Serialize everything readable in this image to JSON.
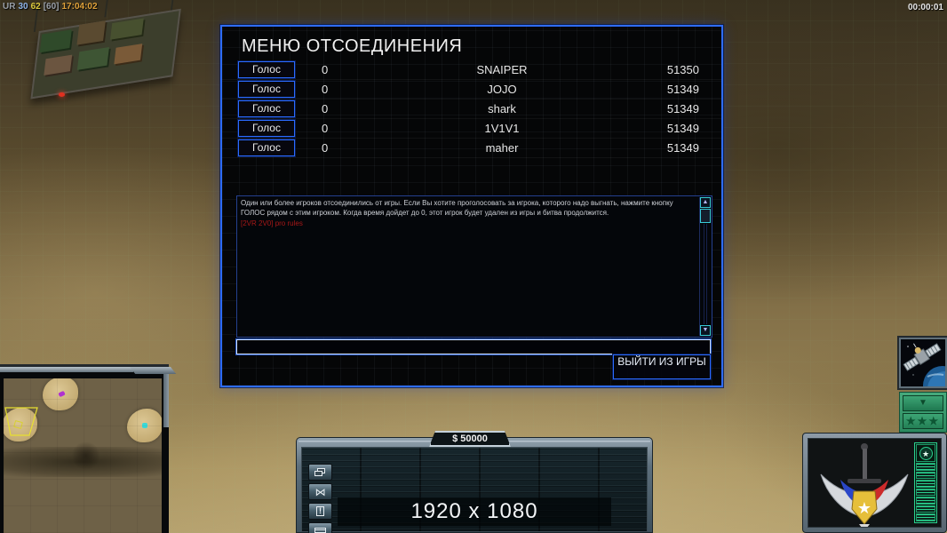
{
  "hud": {
    "top_left": {
      "prefix": "UR",
      "fps": "30",
      "latency": "62",
      "bracket": "[60]",
      "clock": "17:04:02"
    },
    "match_timer": "00:00:01",
    "money": "$ 50000",
    "resolution_overlay": "1920 x 1080"
  },
  "dialog": {
    "title": "МЕНЮ ОТСОЕДИНЕНИЯ",
    "vote_button_label": "Голос",
    "players": [
      {
        "votes": "0",
        "name": "SNAIPER",
        "ping": "51350"
      },
      {
        "votes": "0",
        "name": "JOJO",
        "ping": "51349"
      },
      {
        "votes": "0",
        "name": "shark",
        "ping": "51349"
      },
      {
        "votes": "0",
        "name": "1V1V1",
        "ping": "51349"
      },
      {
        "votes": "0",
        "name": "maher",
        "ping": "51349"
      }
    ],
    "info_text": "Один или более игроков отсоединились от игры. Если Вы хотите проголосовать за игрока, которого надо выгнать, нажмите кнопку ГОЛОС рядом с этим игроком. Когда время дойдет до 0, этот игрок будет удален из игры и битва продолжится.",
    "chat_line": "[2VR 2V0] pro rules",
    "chat_input_value": "",
    "exit_button_label": "ВЫЙТИ ИЗ ИГРЫ",
    "scroll_up_glyph": "▲",
    "scroll_down_glyph": "▼"
  },
  "command_bar": {
    "icons": [
      "windows-icon",
      "wrench-icon",
      "alert-icon",
      "chat-sign-icon"
    ],
    "wrench_glyph": "⋈",
    "alert_glyph": "!"
  },
  "side_panel": {
    "rank_arrow_glyph": "▼",
    "rank_stars": "★★★",
    "exp_star_glyph": "★",
    "exp_segments": 7
  },
  "colors": {
    "dialog_border": "#2e6cfa",
    "vote_button_border": "#2b6bff",
    "scrollbar_cyan": "#38ccd8",
    "chat_line_red": "#a81818",
    "rank_green": "#35a070",
    "exp_green": "#2bd18f",
    "money_text": "#f2f2f2"
  }
}
